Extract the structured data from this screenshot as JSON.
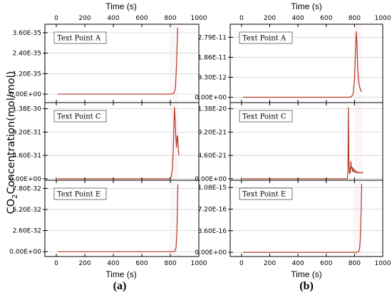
{
  "ylabel": {
    "prefix": "CO",
    "sub": "2",
    "rest": "Concentration(mol/mol)"
  },
  "panels": [
    {
      "tag": "(a)",
      "xlabel": "Time (s)"
    },
    {
      "tag": "(b)",
      "xlabel": "Time (s)"
    }
  ],
  "colors": {
    "line": "#b5361f",
    "shade": "#f3dcea",
    "grid": "#cccccc"
  },
  "chart_data": [
    {
      "type": "line",
      "panel": "(a)",
      "subplot": "Text Point A",
      "legend": "Text Point A",
      "xlabel": "Time (s)",
      "ylabel": "CO2 Concentration(mol/mol)",
      "xlim": [
        -80,
        1000
      ],
      "x_ticks": [
        0,
        200,
        400,
        600,
        800,
        1000
      ],
      "x_tick_labels": [
        "0",
        "200",
        "400",
        "600",
        "800",
        "1000"
      ],
      "ylim": [
        -5e-36,
        4.1e-35
      ],
      "y_ticks": [
        0,
        1.2e-35,
        2.4e-35,
        3.6e-35
      ],
      "y_tick_labels": [
        "0.00E+00",
        "1.20E-35",
        "2.40E-35",
        "3.60E-35"
      ],
      "grid": true,
      "series": [
        {
          "values": [
            [
              10,
              0
            ],
            [
              700,
              0
            ],
            [
              800,
              0
            ],
            [
              825,
              4e-37
            ],
            [
              835,
              3e-36
            ],
            [
              843,
              1.6e-35
            ],
            [
              848,
              3e-35
            ],
            [
              852,
              3.9e-35
            ]
          ]
        }
      ]
    },
    {
      "type": "line",
      "panel": "(a)",
      "subplot": "Text Point C",
      "legend": "Text Point C",
      "xlabel": "Time (s)",
      "ylabel": "CO2 Concentration(mol/mol)",
      "xlim": [
        -80,
        1000
      ],
      "x_ticks": [
        0,
        200,
        400,
        600,
        800,
        1000
      ],
      "x_tick_labels": [
        "0",
        "200",
        "400",
        "600",
        "800",
        "1000"
      ],
      "ylim": [
        -3e-32,
        1.5e-30
      ],
      "y_ticks": [
        0,
        4.6e-31,
        9.2e-31,
        1.38e-30
      ],
      "y_tick_labels": [
        "0.00E+00",
        "4.60E-31",
        "9.20E-31",
        "1.38E-30"
      ],
      "grid": true,
      "series": [
        {
          "values": [
            [
              10,
              0
            ],
            [
              700,
              0
            ],
            [
              790,
              0
            ],
            [
              805,
              3e-32
            ],
            [
              815,
              2e-31
            ],
            [
              822,
              7e-31
            ],
            [
              826,
              1.15e-30
            ],
            [
              829,
              1.4e-30
            ],
            [
              833,
              1.2e-30
            ],
            [
              838,
              8.5e-31
            ],
            [
              843,
              6.2e-31
            ],
            [
              848,
              8.5e-31
            ],
            [
              852,
              8e-31
            ],
            [
              856,
              6e-31
            ],
            [
              860,
              4.6e-31
            ]
          ]
        }
      ]
    },
    {
      "type": "line",
      "panel": "(a)",
      "subplot": "Text Point E",
      "legend": "Text Point E",
      "xlabel": "Time (s)",
      "ylabel": "CO2 Concentration(mol/mol)",
      "xlim": [
        -80,
        1000
      ],
      "x_ticks": [
        0,
        200,
        400,
        600,
        800,
        1000
      ],
      "x_tick_labels": [
        "0",
        "200",
        "400",
        "600",
        "800",
        "1000"
      ],
      "ylim": [
        -6e-33,
        8.8e-32
      ],
      "y_ticks": [
        0,
        2.6e-32,
        5.2e-32,
        7.8e-32
      ],
      "y_tick_labels": [
        "0.00E+00",
        "2.60E-32",
        "5.20E-32",
        "7.80E-32"
      ],
      "grid": true,
      "series": [
        {
          "values": [
            [
              10,
              0
            ],
            [
              760,
              0
            ],
            [
              820,
              0
            ],
            [
              832,
              6e-34
            ],
            [
              840,
              5e-33
            ],
            [
              846,
              2.4e-32
            ],
            [
              850,
              5.5e-32
            ],
            [
              853,
              8.3e-32
            ]
          ]
        }
      ]
    },
    {
      "type": "line",
      "panel": "(b)",
      "subplot": "Text Point A",
      "legend": "Text Point A",
      "xlabel": "Time (s)",
      "ylabel": "CO2 Concentration(mol/mol)",
      "xlim": [
        -80,
        1000
      ],
      "x_ticks": [
        0,
        200,
        400,
        600,
        800,
        1000
      ],
      "x_tick_labels": [
        "0",
        "200",
        "400",
        "600",
        "800",
        "1000"
      ],
      "ylim": [
        -2.5e-12,
        3.4e-11
      ],
      "y_ticks": [
        0,
        9.3e-12,
        1.86e-11,
        2.79e-11
      ],
      "y_tick_labels": [
        "0.00E+00",
        "9.30E-12",
        "1.86E-11",
        "2.79E-11"
      ],
      "grid": true,
      "series": [
        {
          "values": [
            [
              10,
              0
            ],
            [
              700,
              0
            ],
            [
              760,
              0
            ],
            [
              778,
              2e-13
            ],
            [
              790,
              1.5e-12
            ],
            [
              800,
              8e-12
            ],
            [
              807,
              2.1e-11
            ],
            [
              812,
              3.05e-11
            ],
            [
              817,
              2.6e-11
            ],
            [
              822,
              1.5e-11
            ],
            [
              828,
              8e-12
            ],
            [
              835,
              5e-12
            ],
            [
              843,
              3.6e-12
            ],
            [
              850,
              2.5e-12
            ]
          ]
        }
      ]
    },
    {
      "type": "line",
      "panel": "(b)",
      "subplot": "Text Point C",
      "legend": "Text Point C",
      "xlabel": "Time (s)",
      "ylabel": "CO2 Concentration(mol/mol)",
      "xlim": [
        -80,
        1000
      ],
      "x_ticks": [
        0,
        200,
        400,
        600,
        800,
        1000
      ],
      "x_tick_labels": [
        "0",
        "200",
        "400",
        "600",
        "800",
        "1000"
      ],
      "ylim": [
        -3e-22,
        1.5e-20
      ],
      "y_ticks": [
        0,
        4.6e-21,
        9.2e-21,
        1.38e-20
      ],
      "y_tick_labels": [
        "0.00E+00",
        "4.60E-21",
        "9.20E-21",
        "1.38E-20"
      ],
      "grid": true,
      "series": [
        {
          "values": [
            [
              10,
              0
            ],
            [
              730,
              0
            ],
            [
              750,
              0
            ],
            [
              754,
              2e-21
            ],
            [
              757,
              1.4e-20
            ],
            [
              760,
              4e-21
            ],
            [
              764,
              1e-21
            ],
            [
              768,
              2e-21
            ],
            [
              771,
              1.2e-21
            ],
            [
              774,
              3.4e-21
            ],
            [
              778,
              2.1e-21
            ],
            [
              782,
              2.3e-21
            ],
            [
              786,
              1.5e-21
            ],
            [
              790,
              2.1e-21
            ],
            [
              795,
              1.3e-21
            ],
            [
              801,
              1.8e-21
            ],
            [
              807,
              1.2e-21
            ],
            [
              815,
              1.5e-21
            ],
            [
              822,
              1.1e-21
            ],
            [
              830,
              1.3e-21
            ],
            [
              840,
              1.1e-21
            ],
            [
              852,
              1.3e-21
            ],
            [
              860,
              1.1e-21
            ]
          ]
        }
      ]
    },
    {
      "type": "line",
      "panel": "(b)",
      "subplot": "Text Point E",
      "legend": "Text Point E",
      "xlabel": "Time (s)",
      "ylabel": "CO2 Concentration(mol/mol)",
      "xlim": [
        -80,
        1000
      ],
      "x_ticks": [
        0,
        200,
        400,
        600,
        800,
        1000
      ],
      "x_tick_labels": [
        "0",
        "200",
        "400",
        "600",
        "800",
        "1000"
      ],
      "ylim": [
        -7e-17,
        1.2e-15
      ],
      "y_ticks": [
        0,
        3.6e-16,
        7.2e-16,
        1.08e-15
      ],
      "y_tick_labels": [
        "0.00E+00",
        "3.60E-16",
        "7.20E-16",
        "1.08E-15"
      ],
      "grid": true,
      "series": [
        {
          "values": [
            [
              10,
              0
            ],
            [
              780,
              0
            ],
            [
              815,
              0
            ],
            [
              828,
              1e-17
            ],
            [
              836,
              6e-17
            ],
            [
              842,
              2.6e-16
            ],
            [
              847,
              7e-16
            ],
            [
              851,
              1.14e-15
            ]
          ]
        }
      ]
    }
  ]
}
